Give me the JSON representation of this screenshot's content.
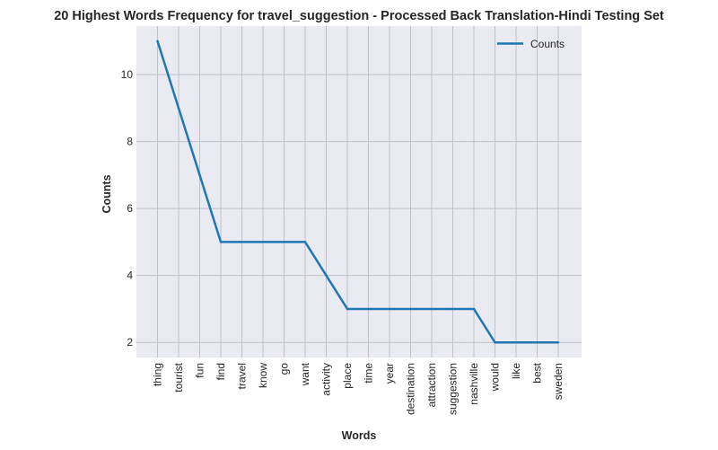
{
  "chart_data": {
    "type": "line",
    "title": "20 Highest Words Frequency for travel_suggestion - Processed Back Translation-Hindi Testing Set",
    "xlabel": "Words",
    "ylabel": "Counts",
    "categories": [
      "thing",
      "tourist",
      "fun",
      "find",
      "travel",
      "know",
      "go",
      "want",
      "activity",
      "place",
      "time",
      "year",
      "destination",
      "attraction",
      "suggestion",
      "nashville",
      "would",
      "like",
      "best",
      "sweden"
    ],
    "series": [
      {
        "name": "Counts",
        "values": [
          11,
          9,
          7,
          5,
          5,
          5,
          5,
          5,
          4,
          3,
          3,
          3,
          3,
          3,
          3,
          3,
          2,
          2,
          2,
          2
        ],
        "color": "#1f77b4"
      }
    ],
    "ylim": [
      1.55,
      11.45
    ],
    "yticks": [
      2,
      4,
      6,
      8,
      10
    ],
    "grid": true,
    "legend": "upper right",
    "colors": {
      "plot_background": "#eaeaf2",
      "grid": "#c0c0c6",
      "line": "#1f77b4"
    }
  }
}
